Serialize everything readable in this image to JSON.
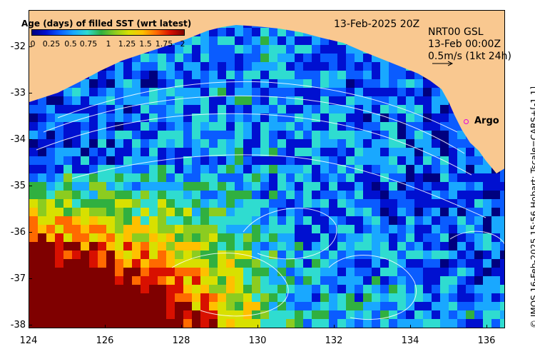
{
  "map": {
    "date_label": "13-Feb-2025 20Z",
    "current_info": {
      "line1": "NRT00 GSL",
      "line2": "13-Feb 00:00Z",
      "line3": "0.5m/s (1kt 24h)"
    },
    "argo_label": "Argo",
    "argo_color": "#e000e0",
    "land_color": "#f9c890",
    "credit": "© IMOS 16-Feb-2025 15:56 Hobart; Tscale=CARS+[-1 1]",
    "x_ticks": [
      "124",
      "126",
      "128",
      "130",
      "132",
      "134",
      "136"
    ],
    "y_ticks": [
      "-32",
      "-33",
      "-34",
      "-35",
      "-36",
      "-37",
      "-38"
    ],
    "lon_range": [
      124,
      136.5
    ],
    "lat_range": [
      -38.05,
      -31.25
    ]
  },
  "legend": {
    "title": "Age (days) of filled SST (wrt latest)",
    "ticks": [
      "0",
      "0.25",
      "0.5",
      "0.75",
      "1",
      "1.25",
      "1.5",
      "1.75",
      "2"
    ],
    "colors": [
      "#00007f",
      "#0010d0",
      "#0a5cff",
      "#19a8ff",
      "#2fdcd0",
      "#30b040",
      "#8ccc20",
      "#d8e000",
      "#ffc000",
      "#ff6a00",
      "#d81000",
      "#7f0000"
    ]
  }
}
